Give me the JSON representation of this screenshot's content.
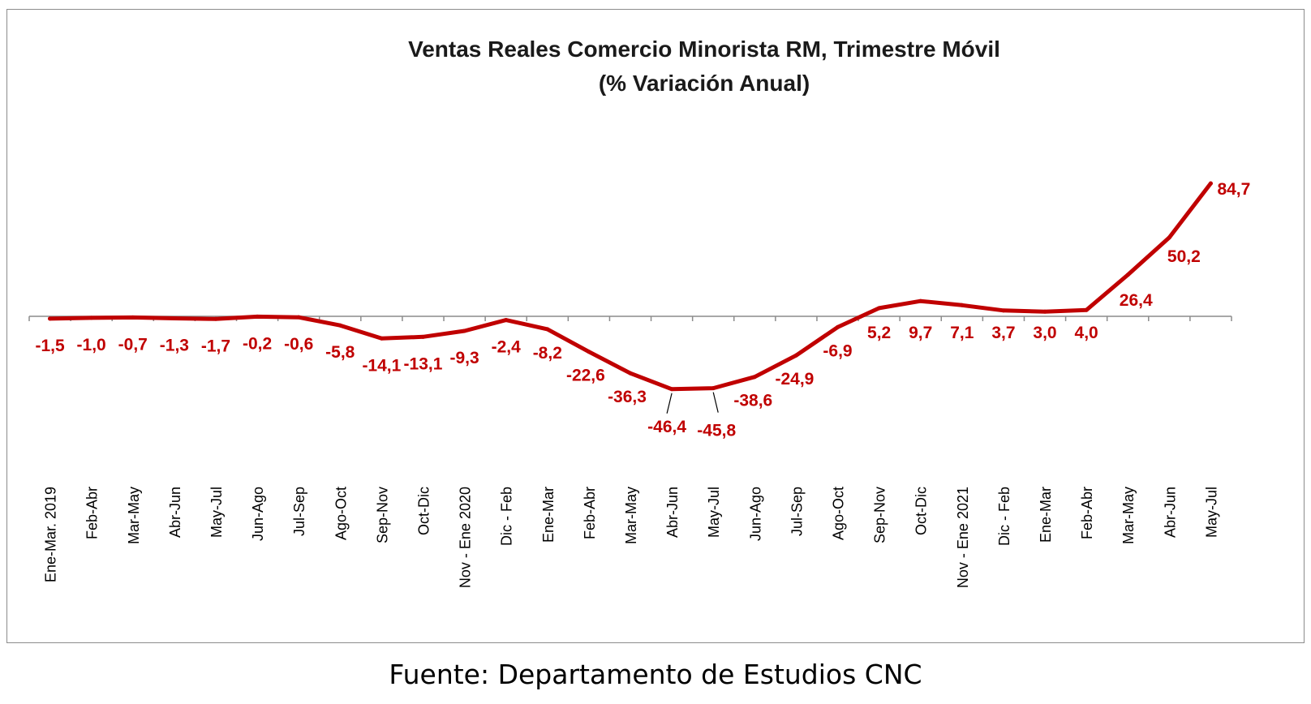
{
  "chart_data": {
    "type": "line",
    "title": "Ventas Reales Comercio Minorista RM, Trimestre Móvil",
    "subtitle": "(% Variación Anual)",
    "categories": [
      "Ene-Mar. 2019",
      "Feb-Abr",
      "Mar-May",
      "Abr-Jun",
      "May-Jul",
      "Jun-Ago",
      "Jul-Sep",
      "Ago-Oct",
      "Sep-Nov",
      "Oct-Dic",
      "Nov - Ene 2020",
      "Dic - Feb",
      "Ene-Mar",
      "Feb-Abr",
      "Mar-May",
      "Abr-Jun",
      "May-Jul",
      "Jun-Ago",
      "Jul-Sep",
      "Ago-Oct",
      "Sep-Nov",
      "Oct-Dic",
      "Nov - Ene 2021",
      "Dic - Feb",
      "Ene-Mar",
      "Feb-Abr",
      "Mar-May",
      "Abr-Jun",
      "May-Jul"
    ],
    "series": [
      {
        "values": [
          -1.5,
          -1.0,
          -0.7,
          -1.3,
          -1.7,
          -0.2,
          -0.6,
          -5.8,
          -14.1,
          -13.1,
          -9.3,
          -2.4,
          -8.2,
          -22.6,
          -36.3,
          -46.4,
          -45.8,
          -38.6,
          -24.9,
          -6.9,
          5.2,
          9.7,
          7.1,
          3.7,
          3.0,
          4.0,
          26.4,
          50.2,
          84.7
        ],
        "labels": [
          "-1,5",
          "-1,0",
          "-0,7",
          "-1,3",
          "-1,7",
          "-0,2",
          "-0,6",
          "-5,8",
          "-14,1",
          "-13,1",
          "-9,3",
          "-2,4",
          "-8,2",
          "-22,6",
          "-36,3",
          "-46,4",
          "-45,8",
          "-38,6",
          "-24,9",
          "-6,9",
          "5,2",
          "9,7",
          "7,1",
          "3,7",
          "3,0",
          "4,0",
          "26,4",
          "50,2",
          "84,7"
        ],
        "color": "#c00000"
      }
    ],
    "grid": false,
    "legend": "none"
  },
  "source": "Fuente: Departamento de Estudios CNC"
}
